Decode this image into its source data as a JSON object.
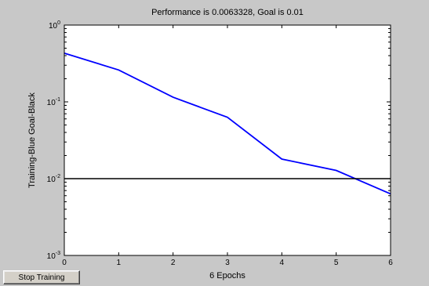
{
  "chart_data": {
    "type": "line",
    "title": "Performance is 0.0063328, Goal is 0.01",
    "xlabel": "6 Epochs",
    "ylabel": "Training-Blue  Goal-Black",
    "xlim": [
      0,
      6
    ],
    "ylim": [
      0.001,
      1
    ],
    "yscale": "log",
    "grid": false,
    "xticks": [
      "0",
      "1",
      "2",
      "3",
      "4",
      "5",
      "6"
    ],
    "yticks": [
      {
        "base": "10",
        "exp": "0"
      },
      {
        "base": "10",
        "exp": "-1"
      },
      {
        "base": "10",
        "exp": "-2"
      },
      {
        "base": "10",
        "exp": "-3"
      }
    ],
    "series": [
      {
        "color": "#0000ff",
        "x": [
          0,
          1,
          2,
          3,
          4,
          5,
          6
        ],
        "y": [
          0.43,
          0.26,
          0.115,
          0.063,
          0.018,
          0.0128,
          0.0063328
        ]
      },
      {
        "color": "#000000",
        "x": [
          0,
          6
        ],
        "y": [
          0.01,
          0.01
        ]
      }
    ]
  },
  "controls": {
    "stop_label": "Stop Training"
  }
}
